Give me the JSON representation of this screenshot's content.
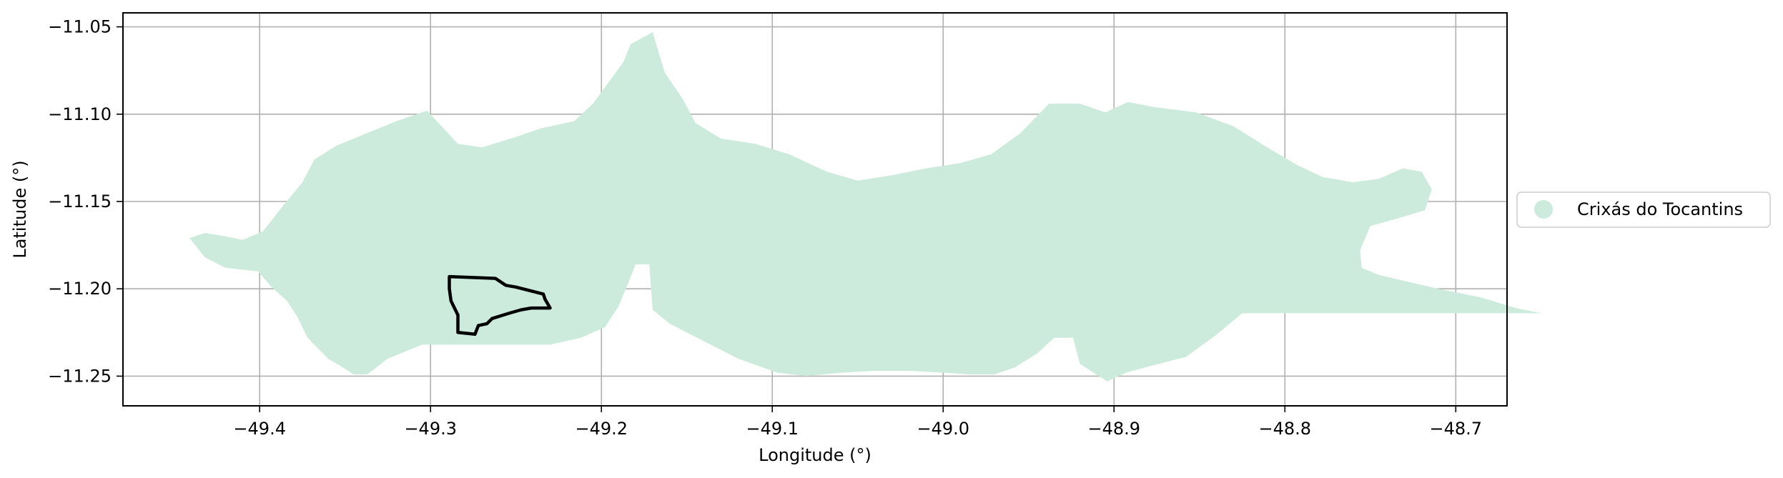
{
  "chart_data": {
    "type": "map",
    "xlabel": "Longitude (°)",
    "ylabel": "Latitude (°)",
    "xlim": [
      -49.48,
      -48.67
    ],
    "ylim": [
      -11.267,
      -11.042
    ],
    "grid": true,
    "xticks": [
      -49.4,
      -49.3,
      -49.2,
      -49.1,
      -49.0,
      -48.9,
      -48.8,
      -48.7
    ],
    "xtick_labels": [
      "−49.4",
      "−49.3",
      "−49.2",
      "−49.1",
      "−49.0",
      "−48.9",
      "−48.8",
      "−48.7"
    ],
    "yticks": [
      -11.05,
      -11.1,
      -11.15,
      -11.2,
      -11.25
    ],
    "ytick_labels": [
      "−11.05",
      "−11.10",
      "−11.15",
      "−11.20",
      "−11.25"
    ],
    "legend": {
      "placement": "right",
      "entries": [
        {
          "label": "Crixás do Tocantins",
          "color": "#cdebdd"
        }
      ]
    },
    "region": {
      "name": "Crixás do Tocantins",
      "fill": "#cdebdd",
      "outline_lonlat": [
        [
          -49.441,
          -11.171
        ],
        [
          -49.432,
          -11.168
        ],
        [
          -49.42,
          -11.17
        ],
        [
          -49.41,
          -11.172
        ],
        [
          -49.398,
          -11.167
        ],
        [
          -49.386,
          -11.152
        ],
        [
          -49.375,
          -11.139
        ],
        [
          -49.368,
          -11.126
        ],
        [
          -49.355,
          -11.118
        ],
        [
          -49.34,
          -11.112
        ],
        [
          -49.32,
          -11.104
        ],
        [
          -49.302,
          -11.098
        ],
        [
          -49.284,
          -11.117
        ],
        [
          -49.27,
          -11.119
        ],
        [
          -49.25,
          -11.113
        ],
        [
          -49.235,
          -11.108
        ],
        [
          -49.216,
          -11.104
        ],
        [
          -49.205,
          -11.094
        ],
        [
          -49.187,
          -11.07
        ],
        [
          -49.183,
          -11.06
        ],
        [
          -49.17,
          -11.053
        ],
        [
          -49.163,
          -11.076
        ],
        [
          -49.152,
          -11.092
        ],
        [
          -49.145,
          -11.105
        ],
        [
          -49.13,
          -11.114
        ],
        [
          -49.11,
          -11.117
        ],
        [
          -49.09,
          -11.123
        ],
        [
          -49.068,
          -11.133
        ],
        [
          -49.05,
          -11.138
        ],
        [
          -49.03,
          -11.135
        ],
        [
          -49.01,
          -11.131
        ],
        [
          -48.99,
          -11.128
        ],
        [
          -48.972,
          -11.123
        ],
        [
          -48.955,
          -11.111
        ],
        [
          -48.938,
          -11.094
        ],
        [
          -48.92,
          -11.094
        ],
        [
          -48.905,
          -11.099
        ],
        [
          -48.892,
          -11.093
        ],
        [
          -48.876,
          -11.096
        ],
        [
          -48.852,
          -11.099
        ],
        [
          -48.83,
          -11.107
        ],
        [
          -48.812,
          -11.118
        ],
        [
          -48.793,
          -11.129
        ],
        [
          -48.778,
          -11.136
        ],
        [
          -48.76,
          -11.139
        ],
        [
          -48.745,
          -11.137
        ],
        [
          -48.731,
          -11.131
        ],
        [
          -48.72,
          -11.133
        ],
        [
          -48.714,
          -11.143
        ],
        [
          -48.718,
          -11.155
        ],
        [
          -48.735,
          -11.16
        ],
        [
          -48.75,
          -11.164
        ],
        [
          -48.756,
          -11.178
        ],
        [
          -48.755,
          -11.188
        ],
        [
          -48.745,
          -11.192
        ],
        [
          -48.728,
          -11.196
        ],
        [
          -48.71,
          -11.2
        ],
        [
          -48.685,
          -11.205
        ],
        [
          -48.665,
          -11.211
        ],
        [
          -48.65,
          -11.214
        ],
        [
          -48.825,
          -11.214
        ],
        [
          -48.841,
          -11.227
        ],
        [
          -48.858,
          -11.239
        ],
        [
          -48.878,
          -11.244
        ],
        [
          -48.893,
          -11.248
        ],
        [
          -48.904,
          -11.253
        ],
        [
          -48.92,
          -11.243
        ],
        [
          -48.924,
          -11.228
        ],
        [
          -48.935,
          -11.228
        ],
        [
          -48.945,
          -11.237
        ],
        [
          -48.958,
          -11.245
        ],
        [
          -48.97,
          -11.249
        ],
        [
          -48.985,
          -11.249
        ],
        [
          -49.0,
          -11.248
        ],
        [
          -49.02,
          -11.247
        ],
        [
          -49.04,
          -11.247
        ],
        [
          -49.06,
          -11.248
        ],
        [
          -49.08,
          -11.25
        ],
        [
          -49.097,
          -11.248
        ],
        [
          -49.12,
          -11.24
        ],
        [
          -49.14,
          -11.23
        ],
        [
          -49.16,
          -11.22
        ],
        [
          -49.17,
          -11.212
        ],
        [
          -49.172,
          -11.186
        ],
        [
          -49.18,
          -11.186
        ],
        [
          -49.184,
          -11.196
        ],
        [
          -49.19,
          -11.21
        ],
        [
          -49.198,
          -11.222
        ],
        [
          -49.212,
          -11.228
        ],
        [
          -49.23,
          -11.232
        ],
        [
          -49.255,
          -11.232
        ],
        [
          -49.285,
          -11.232
        ],
        [
          -49.305,
          -11.232
        ],
        [
          -49.325,
          -11.24
        ],
        [
          -49.337,
          -11.249
        ],
        [
          -49.345,
          -11.249
        ],
        [
          -49.353,
          -11.244
        ],
        [
          -49.36,
          -11.24
        ],
        [
          -49.372,
          -11.228
        ],
        [
          -49.378,
          -11.216
        ],
        [
          -49.384,
          -11.207
        ],
        [
          -49.393,
          -11.199
        ],
        [
          -49.401,
          -11.19
        ],
        [
          -49.42,
          -11.188
        ],
        [
          -49.432,
          -11.182
        ],
        [
          -49.441,
          -11.171
        ]
      ]
    },
    "highlight": {
      "stroke": "#000000",
      "outline_lonlat": [
        [
          -49.289,
          -11.193
        ],
        [
          -49.262,
          -11.194
        ],
        [
          -49.256,
          -11.198
        ],
        [
          -49.25,
          -11.199
        ],
        [
          -49.234,
          -11.203
        ],
        [
          -49.233,
          -11.206
        ],
        [
          -49.23,
          -11.211
        ],
        [
          -49.241,
          -11.211
        ],
        [
          -49.247,
          -11.212
        ],
        [
          -49.254,
          -11.214
        ],
        [
          -49.264,
          -11.217
        ],
        [
          -49.267,
          -11.22
        ],
        [
          -49.272,
          -11.221
        ],
        [
          -49.274,
          -11.226
        ],
        [
          -49.284,
          -11.225
        ],
        [
          -49.284,
          -11.215
        ],
        [
          -49.288,
          -11.207
        ],
        [
          -49.289,
          -11.2
        ],
        [
          -49.289,
          -11.193
        ]
      ]
    }
  }
}
